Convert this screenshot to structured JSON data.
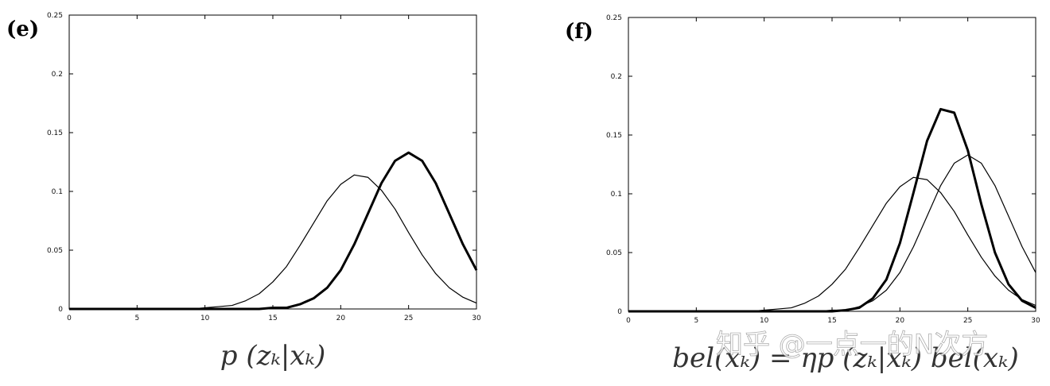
{
  "chart_data": [
    {
      "type": "line",
      "title": "(e)",
      "xlabel": "p (zₖ|xₖ)",
      "x": [
        0,
        1,
        2,
        3,
        4,
        5,
        6,
        7,
        8,
        9,
        10,
        11,
        12,
        13,
        14,
        15,
        16,
        17,
        18,
        19,
        20,
        21,
        22,
        23,
        24,
        25,
        26,
        27,
        28,
        29,
        30
      ],
      "series": [
        {
          "color": "#000000",
          "line_width": 1.2,
          "values": [
            0,
            0,
            0,
            0,
            0,
            0,
            0,
            0,
            0,
            0,
            0.001,
            0.002,
            0.003,
            0.007,
            0.013,
            0.023,
            0.036,
            0.054,
            0.073,
            0.092,
            0.106,
            0.114,
            0.112,
            0.101,
            0.085,
            0.065,
            0.046,
            0.03,
            0.018,
            0.01,
            0.005
          ]
        },
        {
          "color": "#000000",
          "line_width": 3,
          "values": [
            0,
            0,
            0,
            0,
            0,
            0,
            0,
            0,
            0,
            0,
            0,
            0,
            0,
            0,
            0,
            0.001,
            0.001,
            0.004,
            0.009,
            0.018,
            0.033,
            0.055,
            0.081,
            0.107,
            0.126,
            0.133,
            0.126,
            0.107,
            0.081,
            0.055,
            0.033
          ]
        }
      ],
      "xlim": [
        0,
        30
      ],
      "xticks": [
        0,
        5,
        10,
        15,
        20,
        25,
        30
      ],
      "ylim": [
        0,
        0.25
      ],
      "yticks": [
        0,
        0.05,
        0.1,
        0.15,
        0.2,
        0.25
      ]
    },
    {
      "type": "line",
      "title": "(f)",
      "xlabel": "bel(xₖ) = ηp (zₖ|xₖ) bel(xₖ)",
      "x": [
        0,
        1,
        2,
        3,
        4,
        5,
        6,
        7,
        8,
        9,
        10,
        11,
        12,
        13,
        14,
        15,
        16,
        17,
        18,
        19,
        20,
        21,
        22,
        23,
        24,
        25,
        26,
        27,
        28,
        29,
        30
      ],
      "series": [
        {
          "color": "#000000",
          "line_width": 1.2,
          "values": [
            0,
            0,
            0,
            0,
            0,
            0,
            0,
            0,
            0,
            0,
            0.001,
            0.002,
            0.003,
            0.007,
            0.013,
            0.023,
            0.036,
            0.054,
            0.073,
            0.092,
            0.106,
            0.114,
            0.112,
            0.101,
            0.085,
            0.065,
            0.046,
            0.03,
            0.018,
            0.01,
            0.005
          ]
        },
        {
          "color": "#000000",
          "line_width": 1.2,
          "values": [
            0,
            0,
            0,
            0,
            0,
            0,
            0,
            0,
            0,
            0,
            0,
            0,
            0,
            0,
            0,
            0.001,
            0.001,
            0.004,
            0.009,
            0.018,
            0.033,
            0.055,
            0.081,
            0.107,
            0.126,
            0.133,
            0.126,
            0.107,
            0.081,
            0.055,
            0.033
          ]
        },
        {
          "color": "#000000",
          "line_width": 3,
          "values": [
            0,
            0,
            0,
            0,
            0,
            0,
            0,
            0,
            0,
            0,
            0,
            0,
            0,
            0,
            0,
            0,
            0.001,
            0.003,
            0.011,
            0.027,
            0.058,
            0.101,
            0.145,
            0.172,
            0.169,
            0.137,
            0.091,
            0.05,
            0.023,
            0.009,
            0.003
          ]
        }
      ],
      "xlim": [
        0,
        30
      ],
      "xticks": [
        0,
        5,
        10,
        15,
        20,
        25,
        30
      ],
      "ylim": [
        0,
        0.25
      ],
      "yticks": [
        0,
        0.05,
        0.1,
        0.15,
        0.2,
        0.25
      ]
    }
  ],
  "watermark": "知乎 @一点一的N次方"
}
